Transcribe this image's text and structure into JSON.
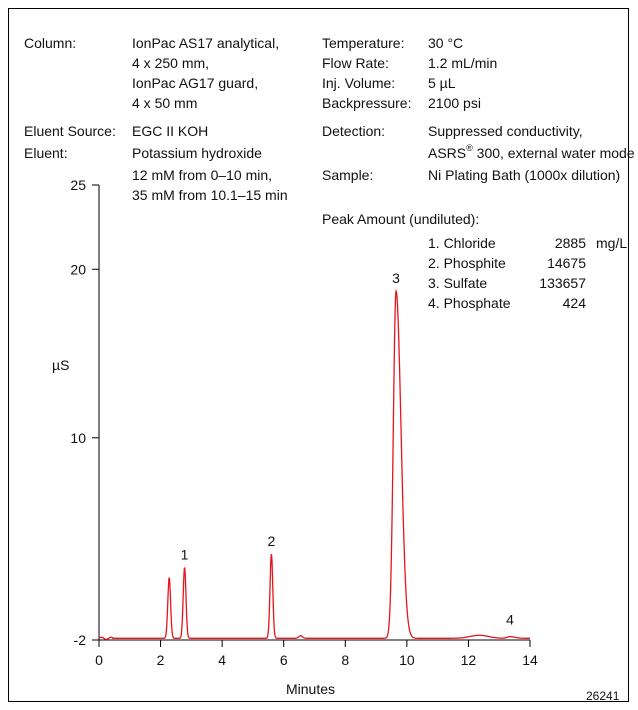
{
  "conditions_left": [
    {
      "label": "Column:",
      "lines": [
        "IonPac AS17 analytical,",
        "4 x 250 mm,",
        "IonPac AG17 guard,",
        "4 x 50 mm"
      ]
    },
    {
      "label": "Eluent Source:",
      "lines": [
        "EGC II KOH"
      ]
    },
    {
      "label": "Eluent:",
      "lines": [
        "Potassium hydroxide",
        "12 mM from 0–10 min,",
        "35 mM from 10.1–15 min"
      ]
    }
  ],
  "conditions_right": [
    {
      "label": "Temperature:",
      "lines": [
        "30 °C"
      ]
    },
    {
      "label": "Flow Rate:",
      "lines": [
        "1.2 mL/min"
      ]
    },
    {
      "label": "Inj. Volume:",
      "lines": [
        "5 µL"
      ]
    },
    {
      "label": "Backpressure:",
      "lines": [
        "2100 psi"
      ]
    },
    {
      "label": "Detection:",
      "lines": [
        "Suppressed conductivity,",
        "ASRS",
        "® 300, external water mode"
      ]
    },
    {
      "label": "Sample:",
      "lines": [
        "Ni Plating Bath (1000x dilution)"
      ]
    }
  ],
  "peak_table": {
    "title": "Peak Amount (undiluted):",
    "unit": "mg/L",
    "rows": [
      {
        "name": "1. Chloride",
        "value": "2885"
      },
      {
        "name": "2. Phosphite",
        "value": "14675"
      },
      {
        "name": "3. Sulfate",
        "value": "133657"
      },
      {
        "name": "4. Phosphate",
        "value": "424"
      }
    ]
  },
  "figure_id": "26241",
  "chart_data": {
    "type": "line",
    "xlabel": "Minutes",
    "ylabel": "µS",
    "xlim": [
      0,
      14
    ],
    "ylim": [
      -2,
      25
    ],
    "x_ticks": [
      0,
      2,
      4,
      6,
      8,
      10,
      12,
      14
    ],
    "y_ticks": [
      -2,
      10,
      20,
      25
    ],
    "line_color": "#e8141b",
    "baseline": -1.9,
    "peaks": [
      {
        "label": "",
        "rt": 2.28,
        "height": 1.7
      },
      {
        "label": "1",
        "rt": 2.78,
        "height": 2.3
      },
      {
        "label": "2",
        "rt": 5.6,
        "height": 3.1
      },
      {
        "label": "3",
        "rt": 9.65,
        "height": 18.7
      },
      {
        "label": "4",
        "rt": 13.35,
        "height": -1.8
      }
    ]
  }
}
